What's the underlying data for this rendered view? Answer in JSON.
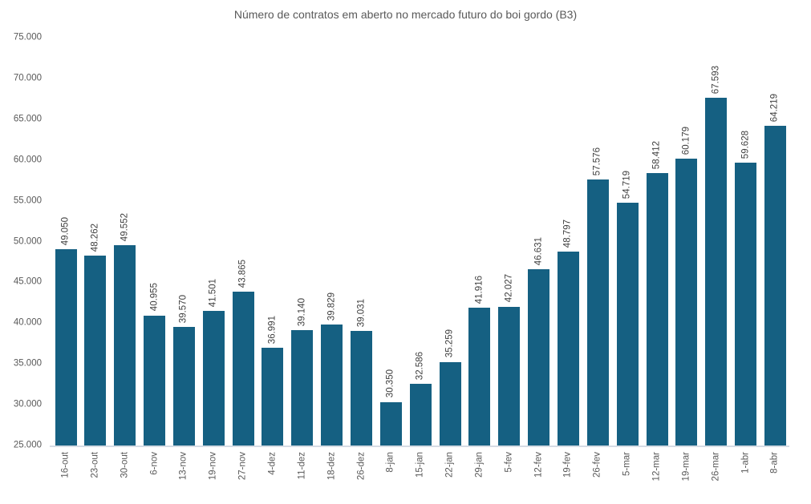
{
  "chart_data": {
    "type": "bar",
    "title": "Número de contratos em aberto no mercado futuro do boi gordo (B3)",
    "xlabel": "",
    "ylabel": "",
    "categories": [
      "16-out",
      "23-out",
      "30-out",
      "6-nov",
      "13-nov",
      "19-nov",
      "27-nov",
      "4-dez",
      "11-dez",
      "18-dez",
      "26-dez",
      "8-jan",
      "15-jan",
      "22-jan",
      "29-jan",
      "5-fev",
      "12-fev",
      "19-fev",
      "26-fev",
      "5-mar",
      "12-mar",
      "19-mar",
      "26-mar",
      "1-abr",
      "8-abr"
    ],
    "values": [
      49050,
      48262,
      49552,
      40955,
      39570,
      41501,
      43865,
      36991,
      39140,
      39829,
      39031,
      30350,
      32586,
      35259,
      41916,
      42027,
      46631,
      48797,
      57576,
      54719,
      58412,
      60179,
      67593,
      59628,
      64219
    ],
    "value_labels": [
      "49.050",
      "48.262",
      "49.552",
      "40.955",
      "39.570",
      "41.501",
      "43.865",
      "36.991",
      "39.140",
      "39.829",
      "39.031",
      "30.350",
      "32.586",
      "35.259",
      "41.916",
      "42.027",
      "46.631",
      "48.797",
      "57.576",
      "54.719",
      "58.412",
      "60.179",
      "67.593",
      "59.628",
      "64.219"
    ],
    "ylim": [
      25000,
      75000
    ],
    "ytick_step": 5000,
    "yticks": [
      {
        "value": 25000,
        "label": "25.000"
      },
      {
        "value": 30000,
        "label": "30.000"
      },
      {
        "value": 35000,
        "label": "35.000"
      },
      {
        "value": 40000,
        "label": "40.000"
      },
      {
        "value": 45000,
        "label": "45.000"
      },
      {
        "value": 50000,
        "label": "50.000"
      },
      {
        "value": 55000,
        "label": "55.000"
      },
      {
        "value": 60000,
        "label": "60.000"
      },
      {
        "value": 65000,
        "label": "65.000"
      },
      {
        "value": 70000,
        "label": "70.000"
      },
      {
        "value": 75000,
        "label": "75.000"
      }
    ],
    "grid": false,
    "legend": "none",
    "bar_color": "#156082",
    "axis_line_color": "#D6DCE4",
    "title_color": "#595959",
    "tick_color": "#595959",
    "value_label_color": "#3F3F3F"
  }
}
